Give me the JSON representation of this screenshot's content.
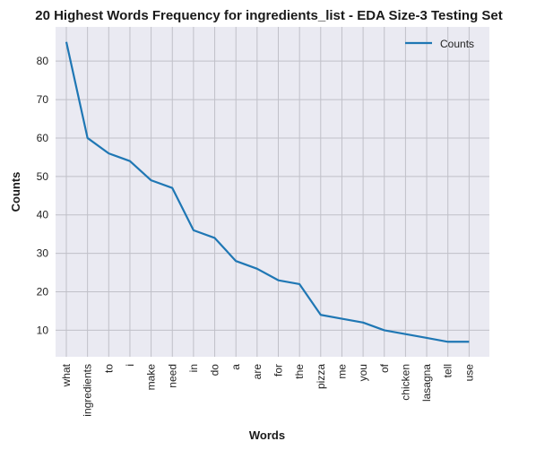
{
  "chart_data": {
    "type": "line",
    "title": "20 Highest Words Frequency for ingredients_list - EDA Size-3 Testing Set",
    "xlabel": "Words",
    "ylabel": "Counts",
    "categories": [
      "what",
      "ingredients",
      "to",
      "i",
      "make",
      "need",
      "in",
      "do",
      "a",
      "are",
      "for",
      "the",
      "pizza",
      "me",
      "you",
      "of",
      "chicken",
      "lasagna",
      "tell",
      "use"
    ],
    "series": [
      {
        "name": "Counts",
        "values": [
          85,
          60,
          56,
          54,
          49,
          47,
          36,
          34,
          28,
          26,
          23,
          22,
          14,
          13,
          12,
          10,
          9,
          8,
          7,
          7
        ]
      }
    ],
    "ylim": [
      3.1,
      88.9
    ],
    "yticks": [
      10,
      20,
      30,
      40,
      50,
      60,
      70,
      80
    ],
    "grid": true,
    "legend": "top-right",
    "colors": {
      "line": "#1f77b4",
      "plot_bg": "#eaeaf2",
      "grid": "#c0c0c8"
    }
  }
}
